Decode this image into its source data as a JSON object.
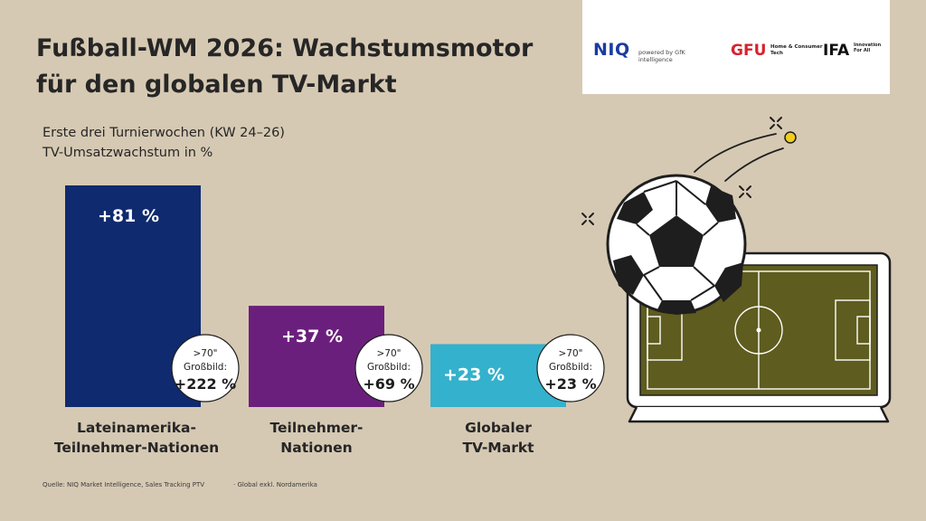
{
  "title": [
    "Fußball-WM 2026: Wachstumsmotor",
    "für den globalen TV-Markt"
  ],
  "subtitle": [
    "Erste drei Turnierwochen (KW 24–26)",
    "TV-Umsatzwachstum in %"
  ],
  "logos": {
    "niq": "NIQ",
    "niq_sub": "powered by GfK intelligence",
    "gfu": "GFU",
    "gfu_sub": "Home & Consumer Tech",
    "ifa": "IFA",
    "ifa_sub": "Innovation For All"
  },
  "chart_data": {
    "type": "bar",
    "categories": [
      [
        "Lateinamerika-",
        "Teilnehmer-Nationen"
      ],
      [
        "Teilnehmer-",
        "Nationen"
      ],
      [
        "Globaler",
        "TV-Markt"
      ]
    ],
    "values": [
      81,
      37,
      23
    ],
    "value_labels": [
      "+81 %",
      "+37 %",
      "+23 %"
    ],
    "colors": [
      "#0f2a6e",
      "#6b1f7c",
      "#34b1cc"
    ],
    "badges": [
      {
        "line1": ">70\"",
        "line2": "Großbild:",
        "value": "+222 %"
      },
      {
        "line1": ">70\"",
        "line2": "Großbild:",
        "value": "+69 %"
      },
      {
        "line1": ">70\"",
        "line2": "Großbild:",
        "value": "+23 %"
      }
    ],
    "ylim": [
      0,
      81
    ]
  },
  "footer": {
    "source": "Quelle: NIQ Market Intelligence, Sales Tracking PTV",
    "note": "· Global exkl. Nordamerika"
  },
  "colors": {
    "background": "#d6c9b3",
    "pitch": "#5e5c1e",
    "ball_accent": "#f2cd1e"
  },
  "icons": [
    "soccer-ball-icon",
    "tv-icon"
  ]
}
